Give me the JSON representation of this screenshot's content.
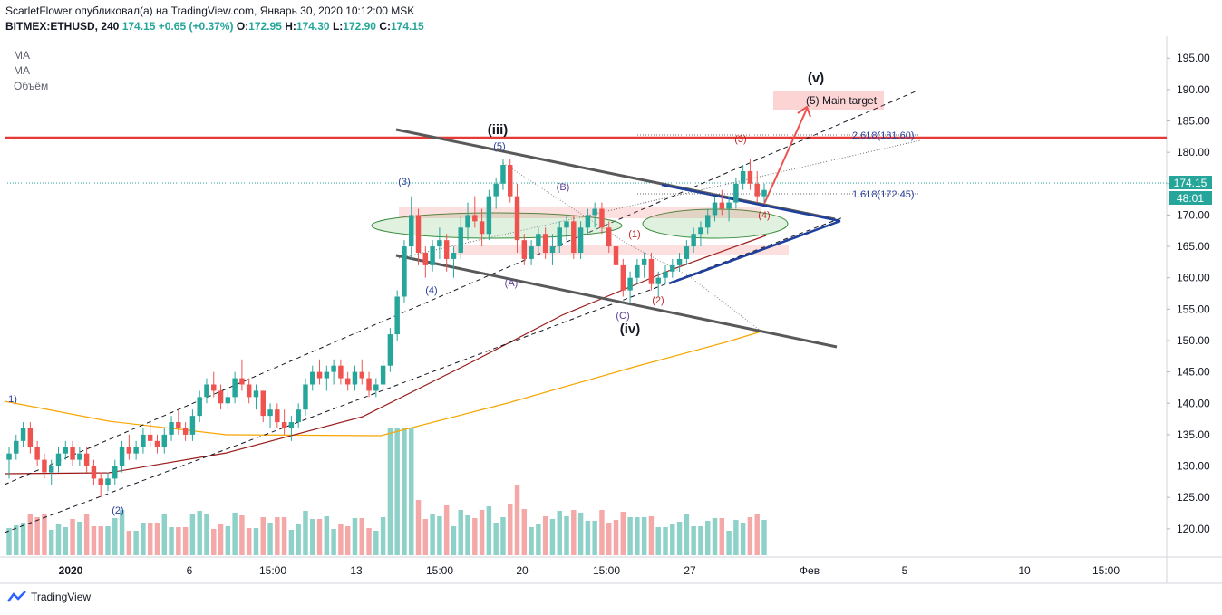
{
  "header": {
    "line1": "ScarletFlower опубликовал(а) на TradingView.com, Январь 30, 2020 10:12:00 MSK",
    "symbol": "BITMEX:ETHUSD, 240",
    "last": "174.15",
    "change": "+0.65 (+0.37%)",
    "o_label": "O:",
    "o": "172.95",
    "h_label": "H:",
    "h": "174.30",
    "l_label": "L:",
    "l": "172.90",
    "c_label": "C:",
    "c": "174.15"
  },
  "indicators": [
    "MA",
    "MA",
    "Объём"
  ],
  "price_badge": {
    "price": "174.15",
    "timer": "48:01"
  },
  "brand": "TradingView",
  "annotations": {
    "iii": "(iii)",
    "iv": "(iv)",
    "v": "(v)",
    "w1": "1)",
    "w2": "(2)",
    "w3": "(3)",
    "w4": "(4)",
    "w5": "(5)",
    "A": "(A)",
    "B": "(B)",
    "C": "(C)",
    "s1": "(1)",
    "s2": "(2)",
    "s3": "(3)",
    "s4": "(4)",
    "target": "(5) Main target",
    "fib2618": "2.618(181.60)",
    "fib1618": "1.618(172.45)"
  },
  "colors": {
    "up": "#26a69a",
    "down": "#ef5350",
    "ma_long": "#f7a600",
    "ma_short": "#9b1b1b",
    "resistance": "#e53935",
    "wedge": "#1e3f9c",
    "channel": "#595959"
  },
  "chart_data": {
    "type": "candlestick",
    "symbol": "BITMEX:ETHUSD",
    "interval": "240",
    "y_ticks": [
      120,
      125,
      130,
      135,
      140,
      145,
      150,
      155,
      160,
      165,
      170,
      175,
      180,
      185,
      190,
      195
    ],
    "y_tick_labels": [
      "120.00",
      "125.00",
      "130.00",
      "135.00",
      "140.00",
      "145.00",
      "150.00",
      "155.00",
      "160.00",
      "165.00",
      "170.00",
      "175.00",
      "180.00",
      "185.00",
      "190.00",
      "195.00"
    ],
    "ylim": [
      115.5,
      198.5
    ],
    "x_tick_labels": [
      "2020",
      "6",
      "15:00",
      "13",
      "15:00",
      "20",
      "15:00",
      "27",
      "Фев",
      "5",
      "10",
      "15:00"
    ],
    "resistance_level": 181.2,
    "fib_levels": [
      {
        "ratio": "2.618",
        "price": 181.6
      },
      {
        "ratio": "1.618",
        "price": 172.45
      }
    ],
    "candles_ohlc": [
      [
        131,
        133,
        128,
        132
      ],
      [
        132,
        135,
        131,
        134
      ],
      [
        134,
        137,
        133,
        136
      ],
      [
        136,
        137,
        132,
        133
      ],
      [
        133,
        134,
        130,
        131
      ],
      [
        131,
        132,
        128,
        129
      ],
      [
        129,
        131,
        127,
        130
      ],
      [
        130,
        133,
        129,
        132
      ],
      [
        132,
        134,
        131,
        133
      ],
      [
        133,
        134,
        130,
        131
      ],
      [
        131,
        133,
        130,
        132
      ],
      [
        132,
        133,
        129,
        130
      ],
      [
        130,
        131,
        127,
        128
      ],
      [
        128,
        129,
        125,
        127
      ],
      [
        127,
        129,
        126,
        128
      ],
      [
        128,
        131,
        127,
        130
      ],
      [
        130,
        134,
        129,
        133
      ],
      [
        133,
        135,
        131,
        132
      ],
      [
        132,
        134,
        131,
        133
      ],
      [
        133,
        136,
        132,
        135
      ],
      [
        135,
        137,
        133,
        134
      ],
      [
        134,
        135,
        132,
        133
      ],
      [
        133,
        136,
        132,
        135
      ],
      [
        135,
        138,
        134,
        137
      ],
      [
        137,
        139,
        135,
        136
      ],
      [
        136,
        137,
        134,
        135
      ],
      [
        135,
        139,
        134,
        138
      ],
      [
        138,
        142,
        137,
        141
      ],
      [
        141,
        144,
        140,
        143
      ],
      [
        143,
        145,
        141,
        142
      ],
      [
        142,
        143,
        139,
        140
      ],
      [
        140,
        142,
        139,
        141
      ],
      [
        141,
        145,
        140,
        144
      ],
      [
        144,
        147,
        142,
        143
      ],
      [
        143,
        144,
        140,
        141
      ],
      [
        141,
        143,
        139,
        142
      ],
      [
        142,
        141,
        137,
        138
      ],
      [
        138,
        140,
        136,
        139
      ],
      [
        139,
        140,
        136,
        137
      ],
      [
        137,
        139,
        135,
        136
      ],
      [
        136,
        138,
        134,
        137
      ],
      [
        137,
        140,
        136,
        139
      ],
      [
        139,
        144,
        138,
        143
      ],
      [
        143,
        146,
        142,
        145
      ],
      [
        145,
        147,
        143,
        144
      ],
      [
        144,
        146,
        142,
        145
      ],
      [
        145,
        147,
        143,
        146
      ],
      [
        146,
        147,
        143,
        144
      ],
      [
        144,
        145,
        142,
        143
      ],
      [
        143,
        146,
        142,
        145
      ],
      [
        145,
        147,
        143,
        144
      ],
      [
        144,
        145,
        141,
        142
      ],
      [
        142,
        144,
        141,
        143
      ],
      [
        143,
        147,
        142,
        146
      ],
      [
        146,
        152,
        145,
        151
      ],
      [
        151,
        158,
        150,
        157
      ],
      [
        157,
        166,
        156,
        165
      ],
      [
        165,
        173,
        163,
        170
      ],
      [
        170,
        171,
        162,
        164
      ],
      [
        164,
        165,
        160,
        162
      ],
      [
        162,
        166,
        161,
        165
      ],
      [
        165,
        168,
        163,
        166
      ],
      [
        166,
        167,
        161,
        163
      ],
      [
        163,
        165,
        160,
        164
      ],
      [
        164,
        170,
        163,
        168
      ],
      [
        168,
        172,
        166,
        170
      ],
      [
        170,
        173,
        168,
        169
      ],
      [
        169,
        171,
        165,
        167
      ],
      [
        167,
        174,
        166,
        173
      ],
      [
        173,
        176,
        171,
        175
      ],
      [
        175,
        179,
        174,
        178
      ],
      [
        178,
        179,
        172,
        173
      ],
      [
        173,
        175,
        164,
        166
      ],
      [
        166,
        167,
        162,
        163
      ],
      [
        163,
        166,
        162,
        165
      ],
      [
        165,
        168,
        164,
        167
      ],
      [
        167,
        168,
        163,
        164
      ],
      [
        164,
        167,
        162,
        165
      ],
      [
        165,
        169,
        164,
        168
      ],
      [
        168,
        170,
        166,
        169
      ],
      [
        169,
        170,
        163,
        164
      ],
      [
        164,
        169,
        163,
        168
      ],
      [
        168,
        171,
        167,
        170
      ],
      [
        170,
        172,
        168,
        171
      ],
      [
        171,
        172,
        167,
        168
      ],
      [
        168,
        169,
        164,
        165
      ],
      [
        165,
        166,
        161,
        162
      ],
      [
        162,
        163,
        157,
        158
      ],
      [
        158,
        161,
        156,
        160
      ],
      [
        160,
        163,
        159,
        162
      ],
      [
        162,
        164,
        160,
        163
      ],
      [
        163,
        164,
        158,
        159
      ],
      [
        159,
        161,
        157,
        160
      ],
      [
        160,
        162,
        159,
        161
      ],
      [
        161,
        163,
        160,
        162
      ],
      [
        162,
        164,
        161,
        163
      ],
      [
        163,
        166,
        162,
        165
      ],
      [
        165,
        168,
        164,
        167
      ],
      [
        167,
        169,
        165,
        168
      ],
      [
        168,
        171,
        167,
        170
      ],
      [
        170,
        173,
        169,
        172
      ],
      [
        172,
        174,
        170,
        171
      ],
      [
        171,
        173,
        169,
        172
      ],
      [
        172,
        176,
        171,
        175
      ],
      [
        175,
        178,
        174,
        177
      ],
      [
        177,
        179,
        174,
        175
      ],
      [
        175,
        177,
        172,
        173
      ],
      [
        173,
        175,
        172,
        174
      ]
    ]
  }
}
